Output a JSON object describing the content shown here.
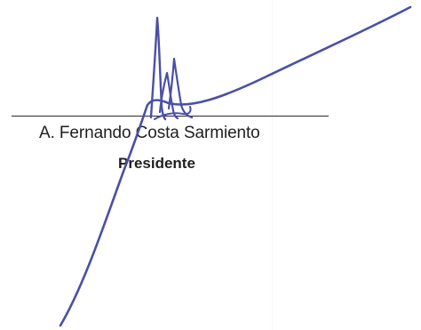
{
  "signature_block": {
    "name": "A. Fernando Costa Sarmiento",
    "title": "Presidente"
  },
  "colors": {
    "ink": "#4a4fa8",
    "text": "#1f1f1f",
    "line": "#2a2a2a"
  },
  "icons": {
    "signature": "handwritten-signature"
  }
}
